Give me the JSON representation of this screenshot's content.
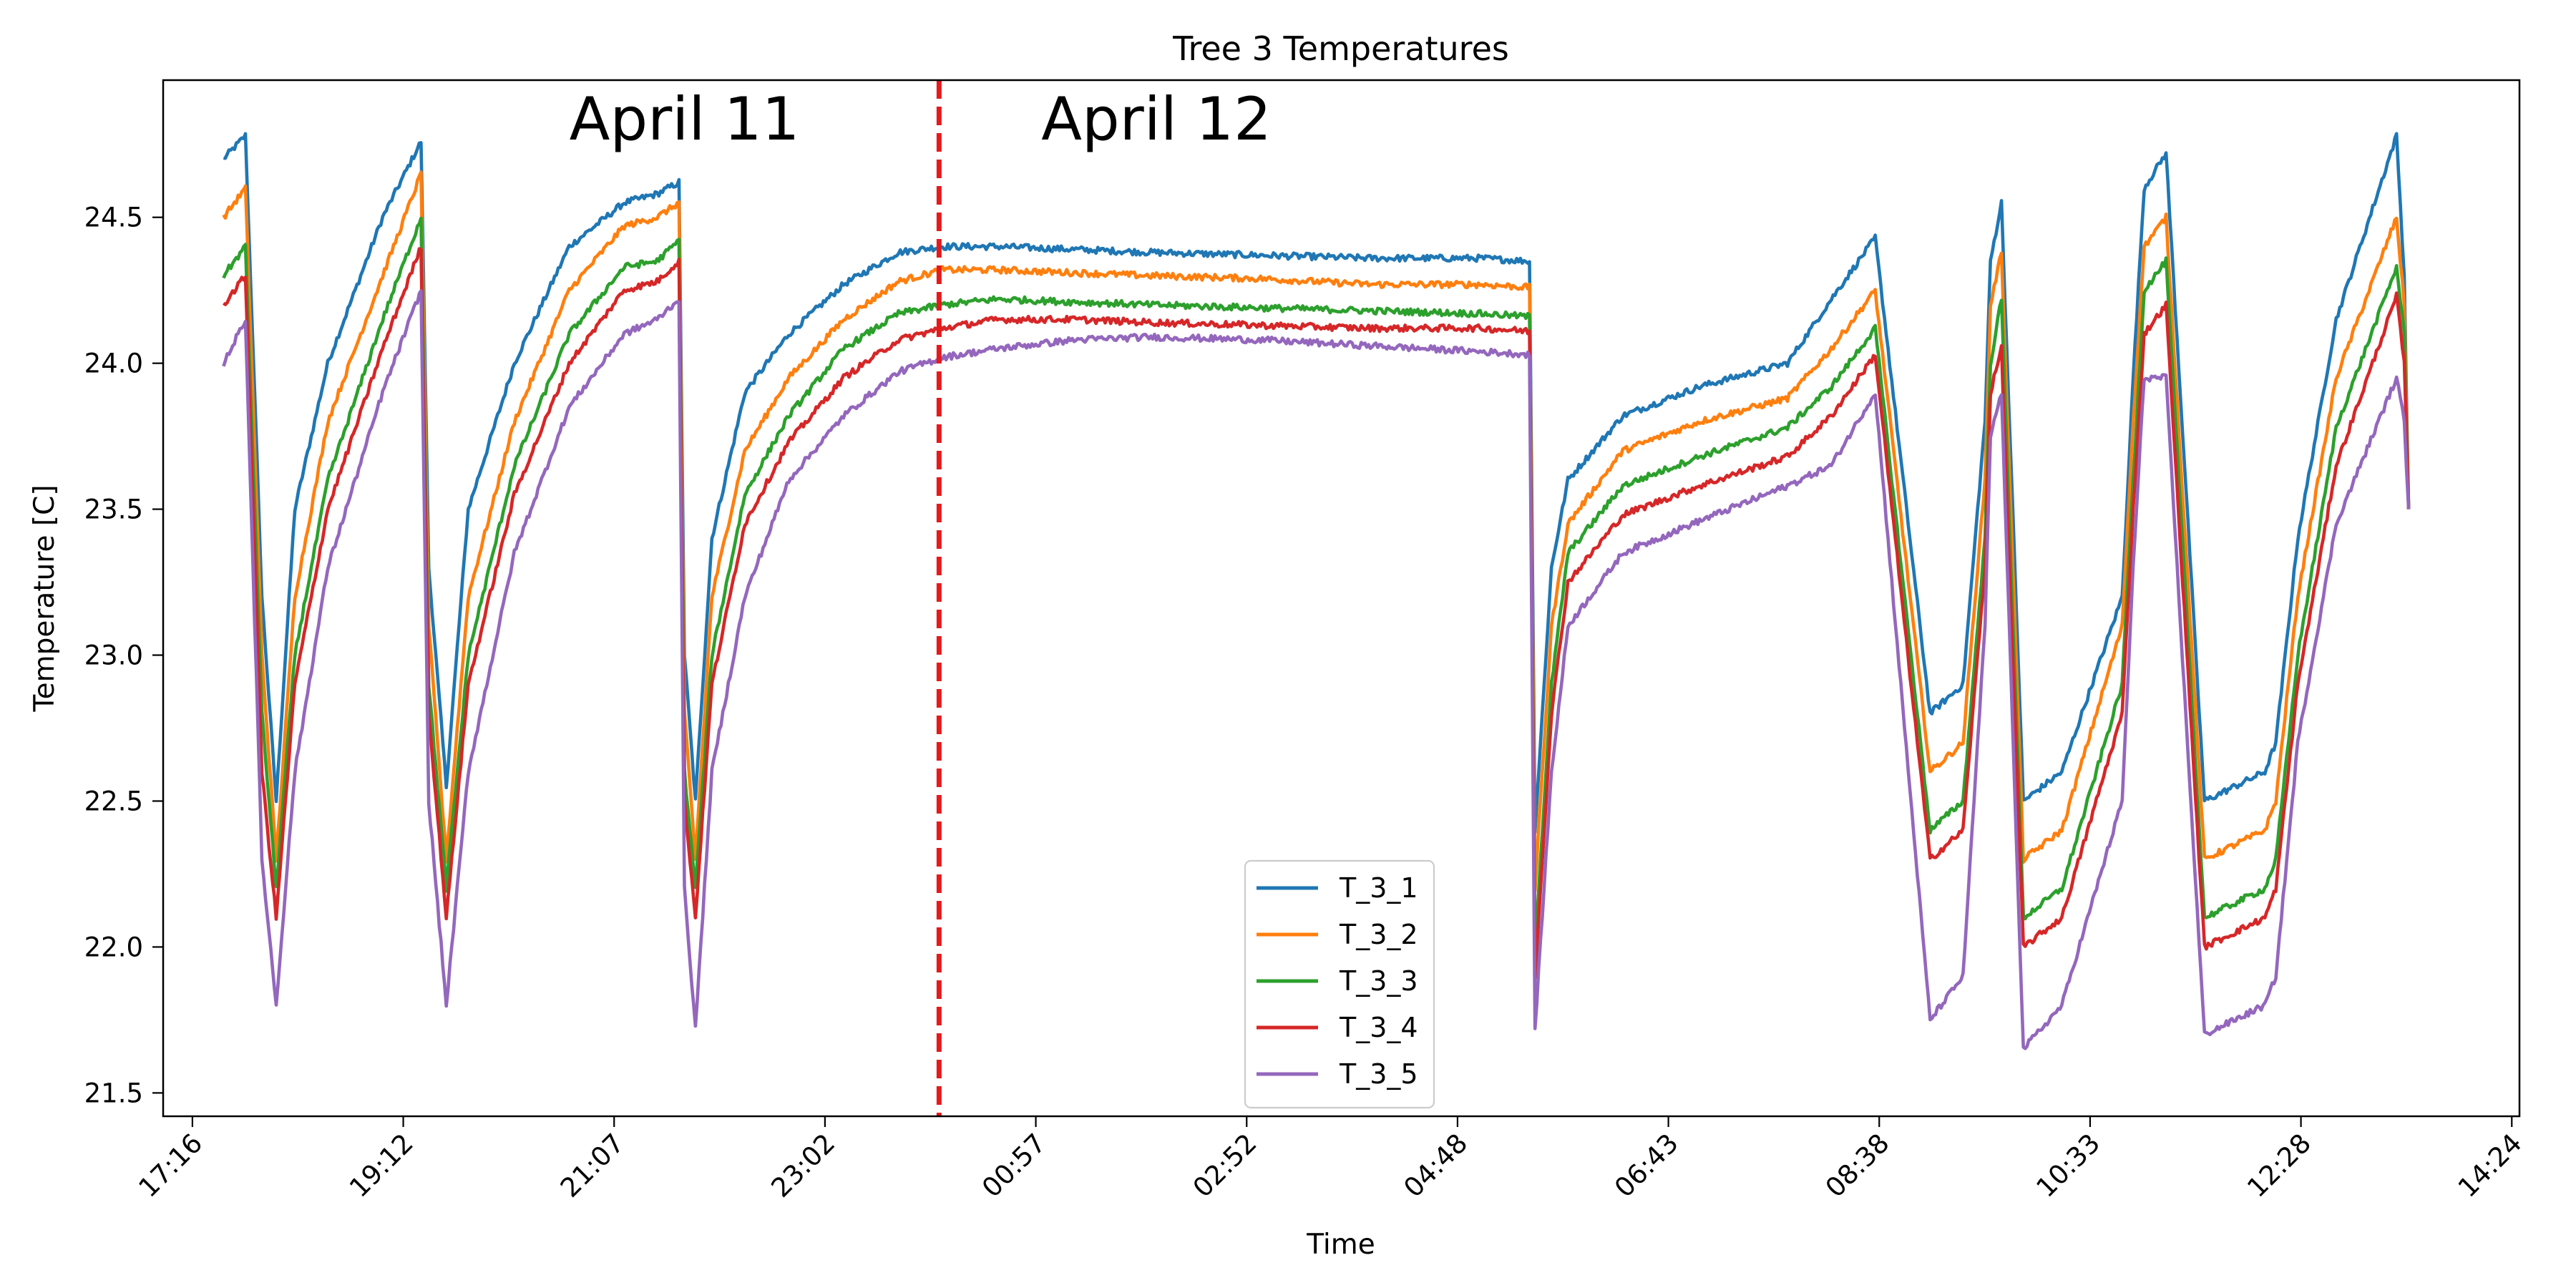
{
  "chart_data": {
    "type": "line",
    "title": "Tree 3 Temperatures",
    "xlabel": "Time",
    "ylabel": "Temperature [C]",
    "x_ticks": [
      "17:16",
      "19:12",
      "21:07",
      "23:02",
      "00:57",
      "02:52",
      "04:48",
      "06:43",
      "08:38",
      "10:33",
      "12:28",
      "14:24"
    ],
    "y_ticks": [
      "21.5",
      "22.0",
      "22.5",
      "23.0",
      "23.5",
      "24.0",
      "24.5"
    ],
    "xlim_hours": [
      17.0,
      38.47
    ],
    "ylim": [
      21.42,
      24.97
    ],
    "grid": false,
    "legend_position": "lower center",
    "annotations": [
      {
        "text": "April 11",
        "x_hours": 21.75,
        "y": 24.84
      },
      {
        "text": "April 12",
        "x_hours": 26.05,
        "y": 24.84
      }
    ],
    "vline": {
      "x_hours": 24.07,
      "color": "#e41a1c",
      "style": "dashed"
    },
    "x_sample_hours": [
      17.55,
      17.75,
      17.9,
      18.03,
      18.2,
      18.5,
      19.0,
      19.35,
      19.42,
      19.58,
      19.78,
      20.2,
      20.7,
      21.2,
      21.5,
      21.7,
      21.75,
      21.85,
      22.0,
      22.3,
      22.7,
      23.2,
      23.7,
      24.1,
      24.6,
      25.3,
      26.0,
      27.0,
      28.0,
      29.0,
      29.45,
      29.5,
      29.65,
      29.8,
      30.3,
      31.0,
      31.8,
      32.2,
      32.6,
      33.1,
      33.4,
      33.6,
      33.65,
      33.75,
      33.95,
      34.3,
      34.85,
      34.95,
      35.05,
      35.25,
      35.6,
      36.15,
      36.25,
      36.45,
      36.8,
      37.35,
      37.42,
      37.46
    ],
    "series": [
      {
        "name": "T_3_1",
        "color": "#1f77b4",
        "values": [
          24.7,
          24.78,
          23.2,
          22.5,
          23.5,
          24.0,
          24.5,
          24.76,
          23.3,
          22.55,
          23.5,
          24.0,
          24.4,
          24.55,
          24.58,
          24.62,
          23.0,
          22.5,
          23.4,
          23.9,
          24.1,
          24.27,
          24.38,
          24.4,
          24.4,
          24.39,
          24.38,
          24.37,
          24.36,
          24.36,
          24.35,
          22.4,
          23.3,
          23.6,
          23.82,
          23.92,
          24.0,
          24.22,
          24.43,
          22.8,
          22.9,
          23.8,
          24.35,
          24.55,
          22.5,
          22.6,
          23.2,
          23.95,
          24.6,
          24.72,
          22.5,
          22.6,
          22.7,
          23.4,
          24.15,
          24.78,
          24.3,
          23.5
        ]
      },
      {
        "name": "T_3_2",
        "color": "#ff7f0e",
        "values": [
          24.5,
          24.6,
          23.0,
          22.3,
          23.2,
          23.8,
          24.3,
          24.65,
          23.1,
          22.3,
          23.2,
          23.8,
          24.25,
          24.47,
          24.5,
          24.55,
          22.8,
          22.3,
          23.2,
          23.7,
          23.95,
          24.15,
          24.28,
          24.32,
          24.32,
          24.31,
          24.3,
          24.29,
          24.27,
          24.27,
          24.26,
          22.2,
          23.1,
          23.45,
          23.7,
          23.8,
          23.88,
          24.05,
          24.25,
          22.6,
          22.7,
          23.6,
          24.2,
          24.38,
          22.3,
          22.4,
          23.1,
          23.8,
          24.4,
          24.5,
          22.3,
          22.4,
          22.5,
          23.2,
          23.95,
          24.5,
          24.2,
          23.5
        ]
      },
      {
        "name": "T_3_3",
        "color": "#2ca02c",
        "values": [
          24.3,
          24.4,
          22.8,
          22.2,
          23.0,
          23.6,
          24.15,
          24.5,
          22.9,
          22.2,
          23.0,
          23.65,
          24.1,
          24.33,
          24.35,
          24.42,
          22.6,
          22.2,
          23.0,
          23.55,
          23.82,
          24.05,
          24.17,
          24.2,
          24.22,
          24.21,
          24.2,
          24.19,
          24.18,
          24.17,
          24.16,
          22.0,
          22.9,
          23.35,
          23.58,
          23.68,
          23.78,
          23.92,
          24.12,
          22.4,
          22.5,
          23.4,
          24.0,
          24.22,
          22.1,
          22.2,
          22.9,
          23.6,
          24.25,
          24.35,
          22.1,
          22.2,
          22.3,
          23.0,
          23.78,
          24.33,
          24.1,
          23.5
        ]
      },
      {
        "name": "T_3_4",
        "color": "#d62728",
        "values": [
          24.2,
          24.3,
          22.6,
          22.1,
          22.9,
          23.5,
          24.05,
          24.4,
          22.8,
          22.1,
          22.9,
          23.55,
          24.0,
          24.25,
          24.28,
          24.35,
          22.5,
          22.1,
          22.9,
          23.45,
          23.73,
          23.95,
          24.08,
          24.12,
          24.15,
          24.15,
          24.14,
          24.13,
          24.12,
          24.12,
          24.11,
          21.9,
          22.8,
          23.25,
          23.48,
          23.58,
          23.68,
          23.82,
          24.03,
          22.3,
          22.4,
          23.3,
          23.9,
          24.05,
          22.0,
          22.1,
          22.8,
          23.5,
          24.1,
          24.2,
          22.0,
          22.1,
          22.2,
          22.9,
          23.65,
          24.23,
          24.0,
          23.5
        ]
      },
      {
        "name": "T_3_5",
        "color": "#9467bd",
        "values": [
          24.0,
          24.15,
          22.3,
          21.8,
          22.6,
          23.3,
          23.9,
          24.25,
          22.5,
          21.8,
          22.6,
          23.35,
          23.85,
          24.1,
          24.15,
          24.22,
          22.2,
          21.72,
          22.6,
          23.2,
          23.6,
          23.82,
          23.97,
          24.02,
          24.05,
          24.08,
          24.09,
          24.08,
          24.06,
          24.04,
          24.03,
          21.72,
          22.6,
          23.1,
          23.35,
          23.46,
          23.58,
          23.65,
          23.9,
          21.75,
          21.9,
          23.1,
          23.75,
          23.9,
          21.65,
          21.8,
          22.5,
          23.3,
          23.95,
          23.95,
          21.7,
          21.8,
          21.9,
          22.7,
          23.45,
          23.95,
          23.8,
          23.5
        ]
      }
    ]
  }
}
